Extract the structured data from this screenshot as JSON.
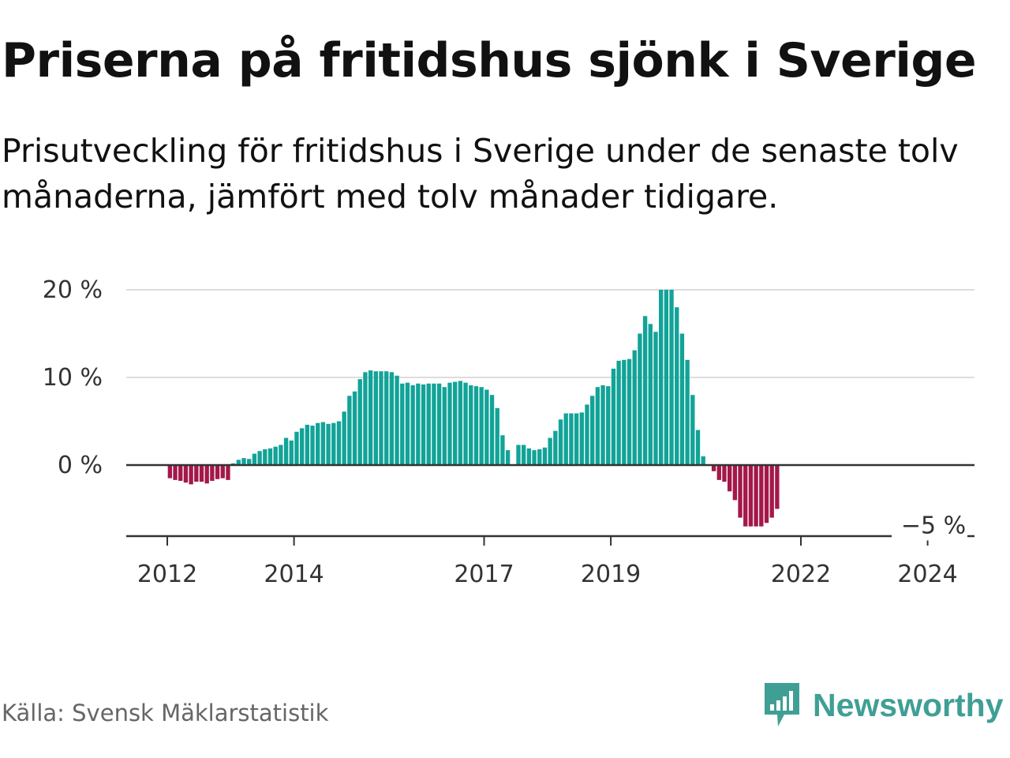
{
  "title": "Priserna på fritidshus sjönk i Sverige",
  "subtitle": "Prisutveckling för fritidshus i Sverige under de senaste tolv månaderna, jämfört med tolv månader tidigare.",
  "source": "Källa: Svensk Mäklarstatistik",
  "brand": {
    "name": "Newsworthy",
    "icon": "newsworthy-logo-icon",
    "color": "#3f9f95"
  },
  "colors": {
    "positive": "#12a398",
    "negative": "#a3184a",
    "grid": "#dddddd",
    "axis": "#333333"
  },
  "chart_data": {
    "type": "bar",
    "title": "Priserna på fritidshus sjönk i Sverige",
    "ylabel": "",
    "xlabel": "",
    "ylim": [
      -8,
      20
    ],
    "y_ticks": [
      0,
      10,
      20
    ],
    "y_tick_labels": [
      "0 %",
      "10 %",
      "20 %"
    ],
    "x_tick_labels": [
      {
        "year": 2012,
        "label": "2012"
      },
      {
        "year": 2014,
        "label": "2014"
      },
      {
        "year": 2017,
        "label": "2017"
      },
      {
        "year": 2019,
        "label": "2019"
      },
      {
        "year": 2022,
        "label": "2022"
      },
      {
        "year": 2024,
        "label": "2024"
      }
    ],
    "start_year": 2011.0,
    "end_year": 2024.5,
    "annotation": {
      "label": "−5 %",
      "value": -5
    },
    "series": [
      {
        "name": "Prisutveckling",
        "unit": "%",
        "values": [
          null,
          null,
          null,
          null,
          null,
          null,
          null,
          null,
          null,
          null,
          null,
          null,
          -1.5,
          -1.7,
          -1.8,
          -2.0,
          -2.2,
          -1.9,
          -1.9,
          -2.1,
          -1.8,
          -1.6,
          -1.5,
          -1.7,
          0.2,
          0.6,
          0.8,
          0.7,
          1.3,
          1.6,
          1.8,
          1.9,
          2.1,
          2.3,
          3.1,
          2.8,
          3.8,
          4.2,
          4.6,
          4.5,
          4.8,
          4.9,
          4.7,
          4.8,
          5.0,
          6.1,
          7.9,
          8.4,
          9.8,
          10.6,
          10.8,
          10.7,
          10.7,
          10.7,
          10.6,
          10.2,
          9.3,
          9.4,
          9.1,
          9.3,
          9.2,
          9.3,
          9.3,
          9.3,
          8.9,
          9.4,
          9.5,
          9.6,
          9.4,
          9.1,
          9.0,
          8.9,
          8.6,
          8.0,
          6.5,
          3.4,
          1.7,
          null,
          2.3,
          2.3,
          1.9,
          1.7,
          1.8,
          2.0,
          3.1,
          3.9,
          5.2,
          5.9,
          5.9,
          5.9,
          6.0,
          6.9,
          7.9,
          8.9,
          9.1,
          9.0,
          11.0,
          11.9,
          12.0,
          12.1,
          13.1,
          15.0,
          17.0,
          16.1,
          15.2,
          20.0,
          20.0,
          20.0,
          18.0,
          15.0,
          12.0,
          8.0,
          4.0,
          1.0,
          null,
          -0.7,
          -1.7,
          -1.9,
          -3.0,
          -4.0,
          -6.0,
          -7.0,
          -7.0,
          -7.0,
          -7.0,
          -6.6,
          -6.0,
          -5.0
        ]
      }
    ]
  }
}
